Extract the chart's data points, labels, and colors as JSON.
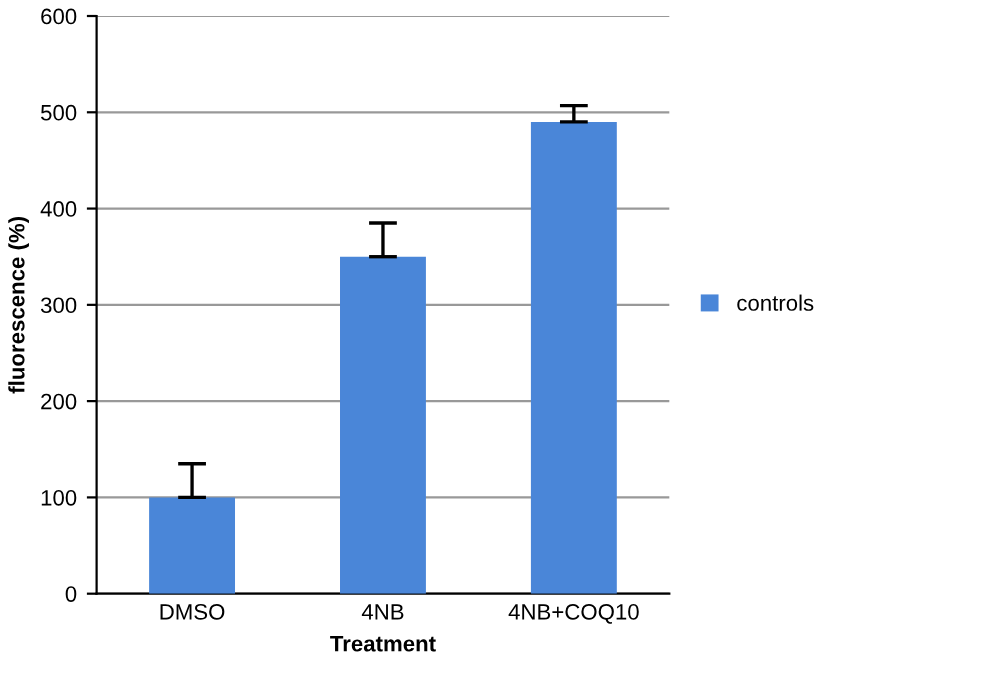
{
  "chart_data": {
    "type": "bar",
    "xlabel": "Treatment",
    "ylabel": "fluorescence (%)",
    "categories": [
      "DMSO",
      "4NB",
      "4NB+COQ10"
    ],
    "series": [
      {
        "name": "controls",
        "color": "#4a86d8",
        "values": [
          100,
          350,
          490
        ],
        "errors": [
          [
            100,
            135
          ],
          [
            350,
            385
          ],
          [
            490,
            507
          ]
        ]
      }
    ],
    "ylim": [
      0,
      600
    ],
    "yticks": [
      0,
      100,
      200,
      300,
      400,
      500,
      600
    ],
    "grid": "y",
    "legend": "right"
  }
}
